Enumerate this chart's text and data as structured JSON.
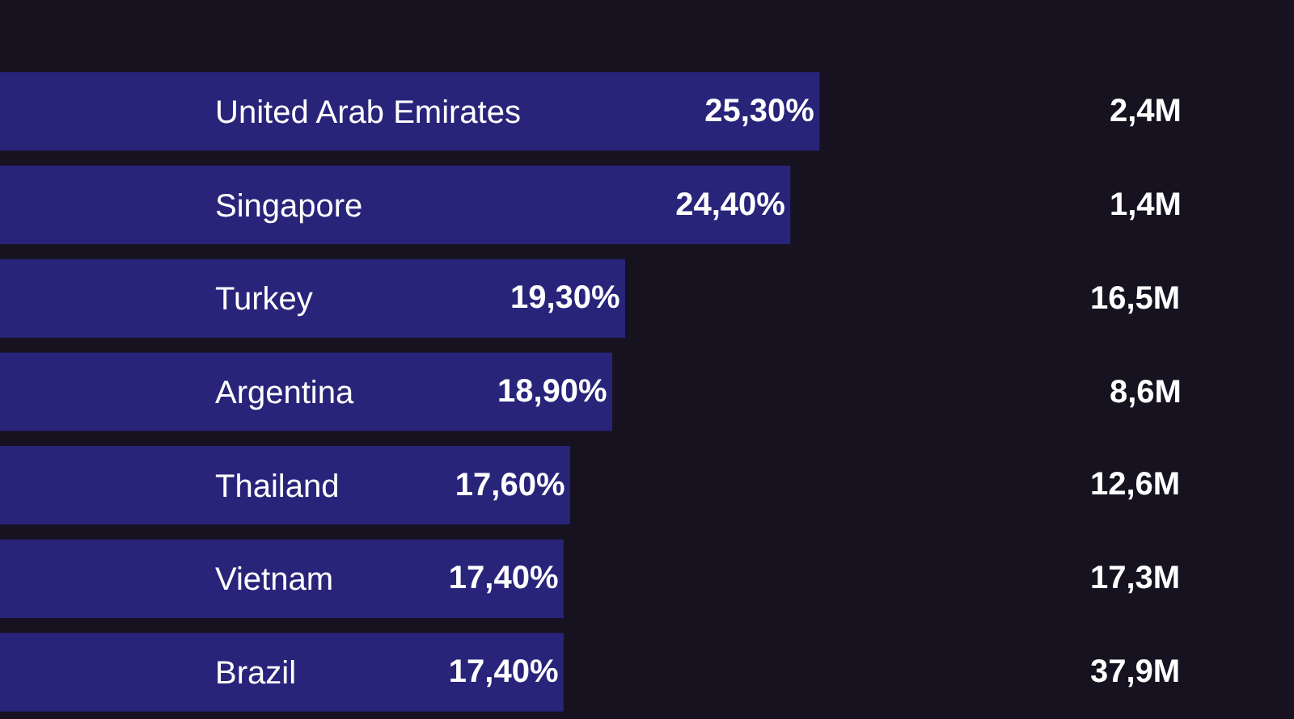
{
  "chart_data": {
    "type": "bar",
    "orientation": "horizontal",
    "tick_labels": "y",
    "categories": [
      "United Arab Emirates",
      "Singapore",
      "Turkey",
      "Argentina",
      "Thailand",
      "Vietnam",
      "Brazil"
    ],
    "values": [
      25.3,
      24.4,
      19.3,
      18.9,
      17.6,
      17.4,
      17.4
    ],
    "value_labels": [
      "25,30%",
      "24,40%",
      "19,30%",
      "18,90%",
      "17,60%",
      "17,40%",
      "17,40%"
    ],
    "color": "#28247a",
    "annotations": [
      "2,4M",
      "1,4M",
      "16,5M",
      "8,6M",
      "12,6M",
      "17,3M",
      "37,9M"
    ]
  }
}
